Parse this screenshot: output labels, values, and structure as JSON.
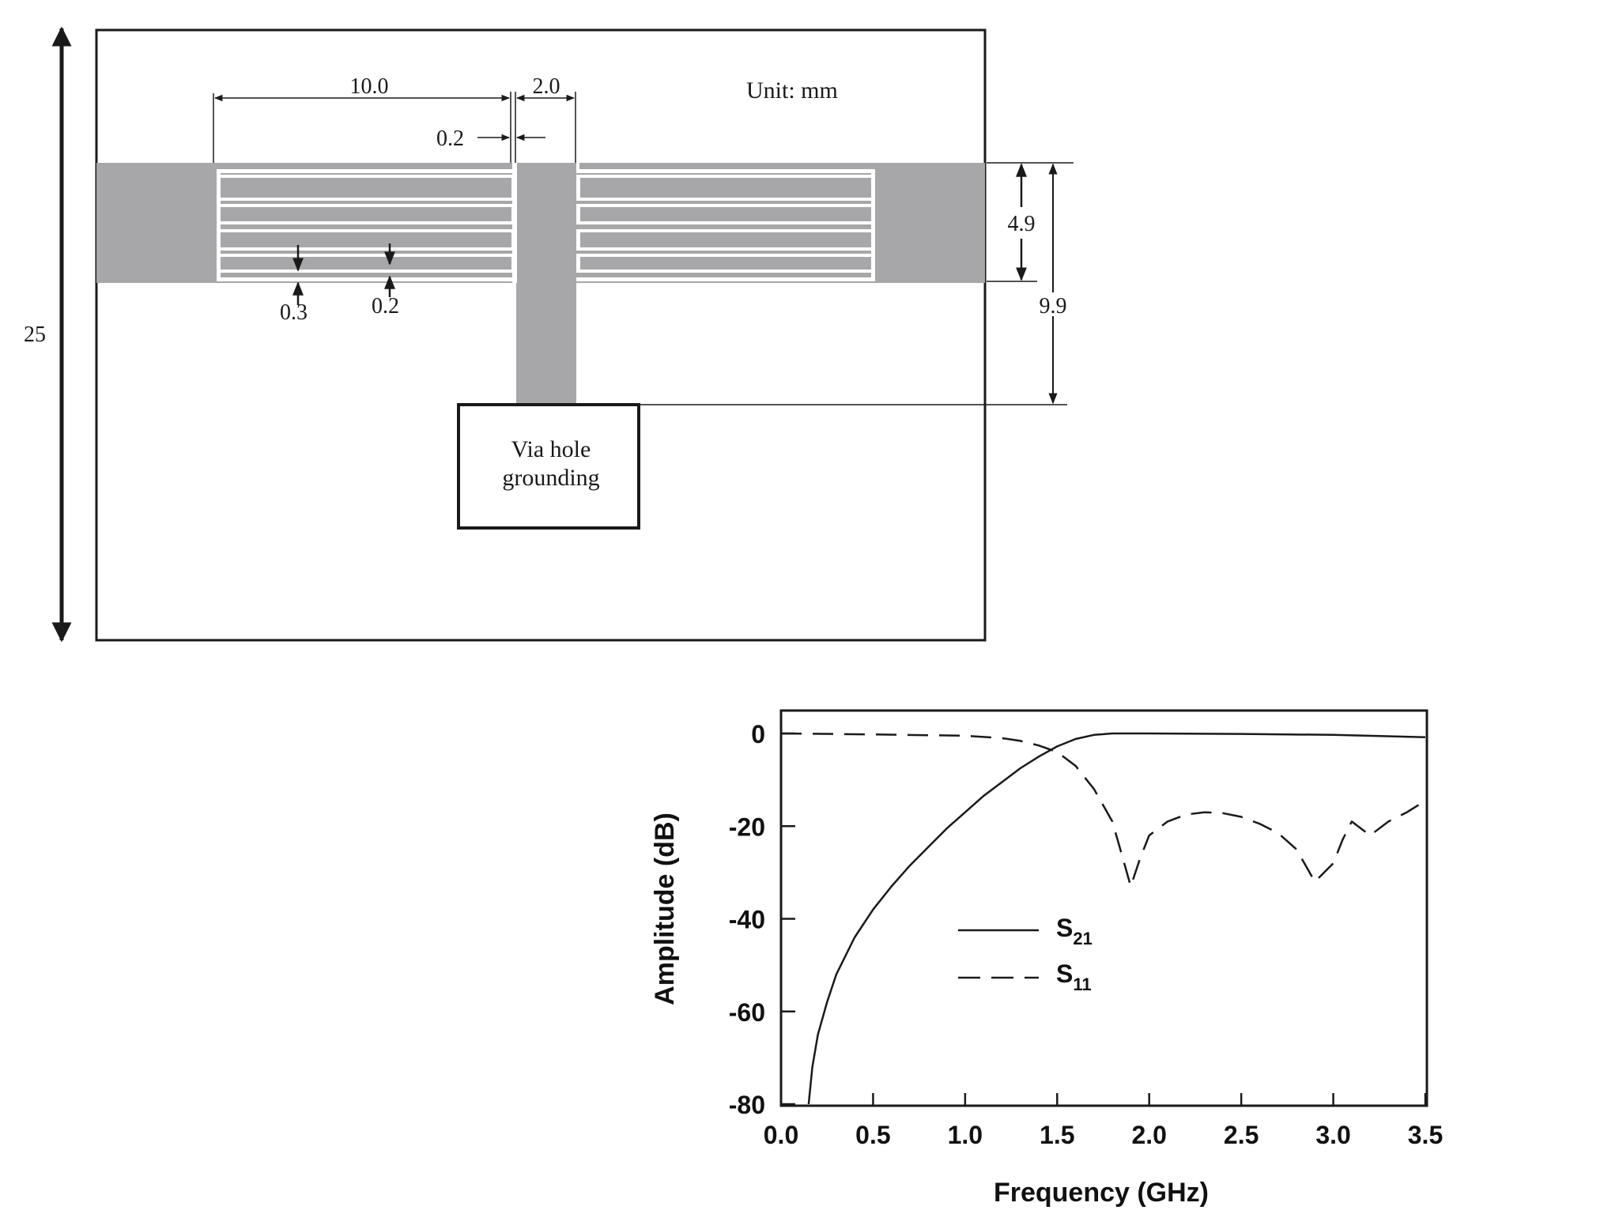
{
  "layout_diagram": {
    "unit_label": "Unit: mm",
    "dimensions": {
      "board_height": "25",
      "finger_length": "10.0",
      "stub_width": "2.0",
      "gap": "0.2",
      "strip_width": "0.3",
      "finger_gap": "0.2",
      "line_width": "4.9",
      "stub_length": "9.9"
    },
    "via_label_line1": "Via hole",
    "via_label_line2": "grounding",
    "colors": {
      "metal": "#a7a6a8",
      "outline": "#1a1a1a"
    }
  },
  "chart_data": {
    "type": "line",
    "xlabel": "Frequency (GHz)",
    "ylabel": "Amplitude (dB)",
    "xlim": [
      0.0,
      3.5
    ],
    "ylim": [
      -80,
      5
    ],
    "xticks": [
      "0.0",
      "0.5",
      "1.0",
      "1.5",
      "2.0",
      "2.5",
      "3.0",
      "3.5"
    ],
    "yticks": [
      "0",
      "-20",
      "-40",
      "-60",
      "-80"
    ],
    "grid": false,
    "legend_position": "center",
    "series": [
      {
        "name": "S21",
        "name_base": "S",
        "name_sub": "21",
        "style": "solid",
        "points": [
          [
            0.15,
            -80
          ],
          [
            0.17,
            -72
          ],
          [
            0.2,
            -65
          ],
          [
            0.25,
            -58
          ],
          [
            0.3,
            -52
          ],
          [
            0.4,
            -44
          ],
          [
            0.5,
            -38
          ],
          [
            0.6,
            -33
          ],
          [
            0.7,
            -28.5
          ],
          [
            0.8,
            -24.5
          ],
          [
            0.9,
            -20.5
          ],
          [
            1.0,
            -17
          ],
          [
            1.1,
            -13.5
          ],
          [
            1.2,
            -10.5
          ],
          [
            1.3,
            -7.5
          ],
          [
            1.4,
            -5
          ],
          [
            1.5,
            -2.8
          ],
          [
            1.6,
            -1.2
          ],
          [
            1.7,
            -0.3
          ],
          [
            1.8,
            0
          ],
          [
            2.0,
            0
          ],
          [
            2.5,
            -0.1
          ],
          [
            3.0,
            -0.3
          ],
          [
            3.5,
            -0.8
          ]
        ]
      },
      {
        "name": "S11",
        "name_base": "S",
        "name_sub": "11",
        "style": "dashed",
        "points": [
          [
            0.0,
            0
          ],
          [
            0.5,
            -0.2
          ],
          [
            1.0,
            -0.5
          ],
          [
            1.2,
            -1
          ],
          [
            1.3,
            -1.6
          ],
          [
            1.4,
            -2.6
          ],
          [
            1.5,
            -4
          ],
          [
            1.6,
            -7
          ],
          [
            1.7,
            -12
          ],
          [
            1.8,
            -19
          ],
          [
            1.85,
            -26
          ],
          [
            1.9,
            -33
          ],
          [
            1.95,
            -27
          ],
          [
            2.0,
            -22
          ],
          [
            2.1,
            -19
          ],
          [
            2.2,
            -17.5
          ],
          [
            2.3,
            -17
          ],
          [
            2.4,
            -17.2
          ],
          [
            2.5,
            -18
          ],
          [
            2.6,
            -19.5
          ],
          [
            2.7,
            -21.5
          ],
          [
            2.8,
            -25
          ],
          [
            2.9,
            -32
          ],
          [
            3.0,
            -28
          ],
          [
            3.05,
            -23
          ],
          [
            3.1,
            -19
          ],
          [
            3.2,
            -22
          ],
          [
            3.3,
            -19
          ],
          [
            3.4,
            -17
          ],
          [
            3.5,
            -14.5
          ]
        ]
      }
    ]
  }
}
